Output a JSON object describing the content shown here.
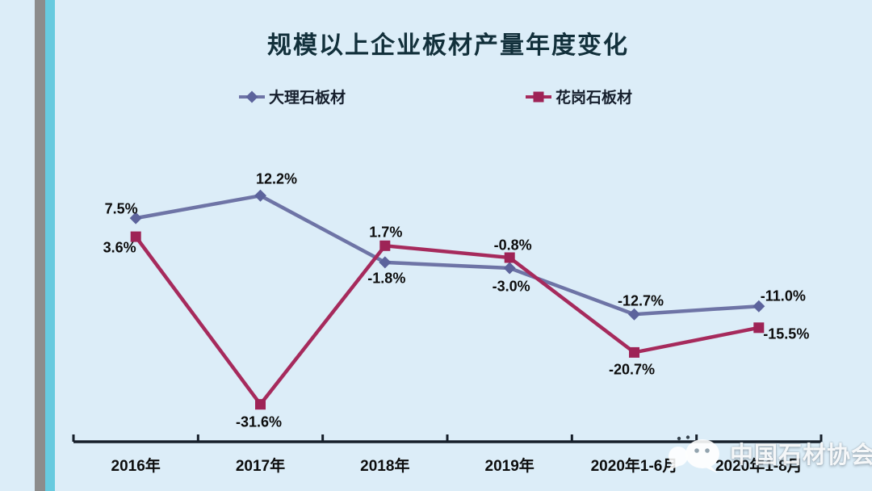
{
  "theme": {
    "background": "#DCEDF8",
    "stripe_gray": "#8C8C8C",
    "stripe_cyan": "#67CADF",
    "axis_color": "#161F2A",
    "title_color": "#12303B",
    "label_color": "#0C0C0C"
  },
  "watermark": {
    "text": "中国石材协会",
    "logo": "wechat-logo"
  },
  "chart_data": {
    "type": "line",
    "title": "规模以上企业板材产量年度变化",
    "unit": "%",
    "categories": [
      "2016年",
      "2017年",
      "2018年",
      "2019年",
      "2020年1-6月",
      "2020年1-8月"
    ],
    "series": [
      {
        "name": "大理石板材",
        "marker": "diamond",
        "color": "#6E74A6",
        "marker_color": "#5C639C",
        "values": [
          7.5,
          12.2,
          -1.8,
          -3.0,
          -12.7,
          -11.0
        ],
        "labels": [
          "7.5%",
          "12.2%",
          "-1.8%",
          "-3.0%",
          "-12.7%",
          "-11.0%"
        ]
      },
      {
        "name": "花岗石板材",
        "marker": "square",
        "color": "#A62A5C",
        "marker_color": "#9E2356",
        "values": [
          3.6,
          -31.6,
          1.7,
          -0.8,
          -20.7,
          -15.5
        ],
        "labels": [
          "3.6%",
          "-31.6%",
          "1.7%",
          "-0.8%",
          "-20.7%",
          "-15.5%"
        ]
      }
    ],
    "legend_position": "top",
    "grid": false,
    "y_axis": "hidden",
    "x_axis_baseline": true,
    "ylim": [
      -39,
      18
    ]
  }
}
